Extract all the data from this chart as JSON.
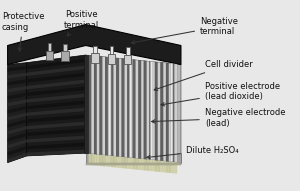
{
  "background_color": "#e8e8e8",
  "labels": {
    "protective_casing": "Protective\ncasing",
    "positive_terminal": "Positive\nterminal",
    "negative_terminal": "Negative\nterminal",
    "cell_divider": "Cell divider",
    "positive_electrode": "Positive electrode\n(lead dioxide)",
    "negative_electrode": "Negative electrode\n(lead)",
    "dilute": "Dilute H₂SO₄"
  },
  "colors": {
    "top_dark": "#1c1c1c",
    "left_dark": "#111111",
    "front_stripe_dark": "#1a1a1a",
    "front_stripe_mid": "#2e2e2e",
    "right_panel_bg": "#b0b0b0",
    "right_panel_face": "#c8c8c8",
    "bottom_face": "#888888",
    "bottom_left": "#555555",
    "electrode_dark": "#5a5a5a",
    "electrode_light": "#d4d4d4",
    "cell_div_color": "#e8e8e8",
    "terminal_base": "#c8c8c8",
    "terminal_nub": "#e0e0e0",
    "acid_fill": "#c8c8a8",
    "text_color": "#111111",
    "arrow_color": "#333333"
  },
  "fig_w": 3.0,
  "fig_h": 1.91,
  "dpi": 100
}
